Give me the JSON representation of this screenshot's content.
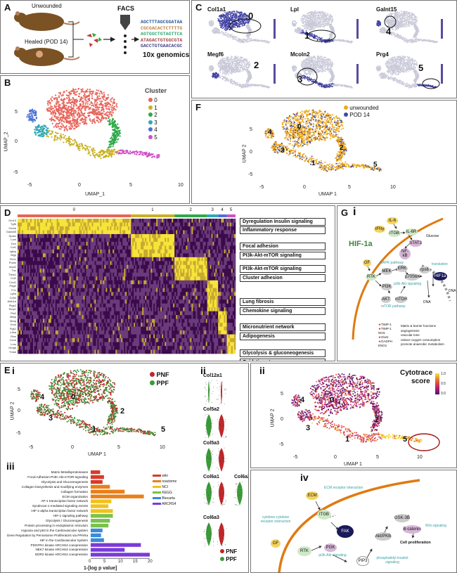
{
  "panels": {
    "A": "A",
    "B": "B",
    "C": "C",
    "D": "D",
    "E": "E",
    "F": "F",
    "G": "G"
  },
  "panelA": {
    "unwounded": "Unwounded",
    "healed": "Healed (POD 14)",
    "facs": "FACS",
    "genomics": "10x genomics",
    "seq": [
      "AGCTTTAGCGGATAA",
      "CGCGACACTCTTTTG",
      "AGTGGCTGTAGTTCA",
      "ATAGACTGTGGCGTA",
      "GACCTGTGAACACGC"
    ]
  },
  "panelB": {
    "legend_title": "Cluster",
    "clusters": [
      "0",
      "1",
      "2",
      "3",
      "4",
      "5"
    ],
    "xlabel": "UMAP_1",
    "ylabel": "UMAP_2",
    "xticks": [
      "-5",
      "0",
      "5",
      "10"
    ],
    "yticks": [
      "5",
      "0",
      "-5"
    ]
  },
  "panelC": {
    "genes": [
      "Col1a1",
      "Lpl",
      "Galnt15",
      "Megf6",
      "Mcoln2",
      "Prg4"
    ],
    "numbers": [
      "0",
      "1",
      "4",
      "2",
      "3",
      "5"
    ],
    "xlabel": "UMAP_1",
    "ylabel": "UMAP_2"
  },
  "panelF": {
    "legend": [
      "unwounded",
      "POD 14"
    ],
    "xlabel": "UMAP 1",
    "ylabel": "UMAP 2",
    "nums": [
      "0",
      "4",
      "3",
      "2",
      "1",
      "5"
    ],
    "xticks": [
      "-5",
      "0",
      "5",
      "10"
    ],
    "yticks": [
      "5",
      "0",
      "-5"
    ]
  },
  "panelD": {
    "clusters": [
      "0",
      "1",
      "2",
      "3",
      "4",
      "5"
    ],
    "genes": [
      "Gm13",
      "Tgfb",
      "Ctnnb",
      "Gadd45",
      "Sparc",
      "Lum",
      "Dcn",
      "Col1",
      "Igfbp",
      "Mgp",
      "Fbn1",
      "Postn",
      "Acta2",
      "Tnc",
      "Thbs1",
      "Ccl2",
      "Cxcl1",
      "Pdgfr",
      "Fn1",
      "Ly6a",
      "Cd34",
      "Aldh1a",
      "Ptgs2",
      "Timp1",
      "Pla2",
      "Mfap",
      "Mmp",
      "Enol",
      "Pgk1",
      "Ldha",
      "Pkm",
      "Ccnd",
      "Lmo",
      "Hmgb",
      "Tmsb"
    ],
    "kegg": [
      "Dyregulation Insulin signaling",
      "Inflammatory response",
      "Focal adhesion",
      "PI3k-Akt-mTOR signaling",
      "PI3k-Akt-mTOR signaling",
      "Cluster adhesion",
      "Lung fibrosis",
      "Chemokine signaling",
      "Micronutrient network",
      "Adipogenesis",
      "Glycolysis & gluconeogenesis",
      "Oxidative stress"
    ]
  },
  "panelEi": {
    "sub": "i",
    "legend": [
      "PNF",
      "PPF"
    ],
    "xlabel": "UMAP  1",
    "ylabel": "UMAP 2",
    "nums": [
      "4",
      "0",
      "2",
      "3",
      "1",
      "5"
    ],
    "xticks": [
      "-5",
      "0",
      "5",
      "10"
    ],
    "yticks": [
      "5",
      "0",
      "-5"
    ]
  },
  "panelEii": {
    "sub": "ii",
    "genes": [
      "Col12a1",
      "Col5a2",
      "Col5a3",
      "Col6a1",
      "Col6a2",
      "Col6a3"
    ],
    "legend": [
      "PNF",
      "PPF"
    ],
    "ylab": "Expression Level"
  },
  "panelEiii": {
    "sub": "iii",
    "terms": [
      "Matrix Metalloproteinases",
      "Focal Adhesion-PI3K-Akt-mTOR-signaling",
      "Glycolysis and Gluconeogenesis",
      "Collagen biosynthesis and modifying enzymes",
      "Collagen formation",
      "ECM organization",
      "AP-1 transcription factor network",
      "Syndecan-1-mediated signaling events",
      "HIF-1-alpha transcription factor network",
      "HIF-1 signaling pathway",
      "Glycolysis / Gluconeogenesis",
      "Protein processing in endoplasmic reticulum",
      "Hypoxia and p53 in the Cardiovascular system",
      "Gene Regulation by Peroxisome Proliferators via PPARa",
      "HIF in the Cardiovascular System",
      "PDGFRA kinase ARCHS4 coexpression",
      "NEK7 kinase ARCHS4 coexpression",
      "DDR2 kinase ARCHS4 coexpression"
    ],
    "values": [
      3.2,
      4.5,
      4.0,
      6.5,
      11.5,
      18.0,
      7.0,
      6.0,
      7.5,
      7.5,
      6.5,
      6.0,
      4.0,
      3.5,
      4.5,
      17.0,
      11.5,
      20.0
    ],
    "groups": [
      "wiki",
      "wiki",
      "wiki",
      "reactome",
      "reactome",
      "reactome",
      "NCI",
      "NCI",
      "NCI",
      "KEGG",
      "KEGG",
      "KEGG",
      "Biocarta",
      "Biocarta",
      "Biocarta",
      "ARCHS4",
      "ARCHS4",
      "ARCHS4"
    ],
    "legend": [
      "wiki",
      "reactome",
      "NCI",
      "KEGG",
      "Biocarta",
      "ARCHS4"
    ],
    "xticks": [
      "0",
      "5",
      "10",
      "15",
      "20"
    ],
    "xlabel": "1-[log p value]"
  },
  "panelEii2": {
    "sub": "ii",
    "title1": "Cytotrace",
    "title2": "score",
    "scale": [
      "1.0",
      "0.5",
      "0.0"
    ],
    "xlabel": "UMAP  1",
    "ylabel": "UMAP 2",
    "nums": [
      "4",
      "0",
      "2",
      "3",
      "1",
      "5"
    ],
    "xticks": [
      "-5",
      "0",
      "5",
      "10"
    ],
    "yticks": [
      "5",
      "0",
      "-5"
    ]
  },
  "panelGi": {
    "sub": "i",
    "title": "HIF-1a",
    "nodes": {
      "il6": "IL-6",
      "ifny": "IFNγ",
      "itgb": "ITGB",
      "il6r": "IL-6R",
      "glucose": "Glucose",
      "stat3": "STAT3",
      "nfkb": "NF-kB",
      "gf": "GF",
      "rtk": "RTK",
      "mek": "MEK",
      "erk": "ERK",
      "pi3k": "PI3K",
      "p70": "p70S6K",
      "rps6": "rps6",
      "akt": "AKT",
      "mtor": "mTOR",
      "hif": "HIF1a",
      "dna1": "DNA",
      "dna2": "DNA"
    },
    "labels": {
      "mapk": "MAPK pathway",
      "pi3": "pi3k-Akt signaling",
      "mtorp": "mTOR pathway",
      "transl": "translation"
    },
    "outputs": [
      "TIMP-1",
      "TIMP-1",
      "NOS",
      "Glut1",
      "GADPH",
      "ENO1"
    ],
    "effects": [
      "Matrix & barrier functions",
      "angiogenesis",
      "vascular tone",
      "reduce oxygen consumption",
      "promote anaerobic metabolism"
    ]
  },
  "panelGiv": {
    "sub": "iv",
    "nodes": {
      "ecm": "ECM",
      "itgb": "ITGB",
      "fak": "FAK",
      "gf": "GF",
      "rtk": "RTK",
      "pi3k": "PI3K",
      "pip3": "PIP3",
      "akt": "Akt/PKB",
      "gsk": "GSK-3B",
      "bcat": "B-catenin"
    },
    "labels": {
      "ecmr": "ECM receptor interaction",
      "cyto": "cytokine-cytokine receptor interaction",
      "pi3": "pi3k-Akt signaling",
      "phos": "phosphatidyl inositol signaling",
      "wnt": "Wnt signaling",
      "prolif": "Cell proliferation"
    }
  }
}
